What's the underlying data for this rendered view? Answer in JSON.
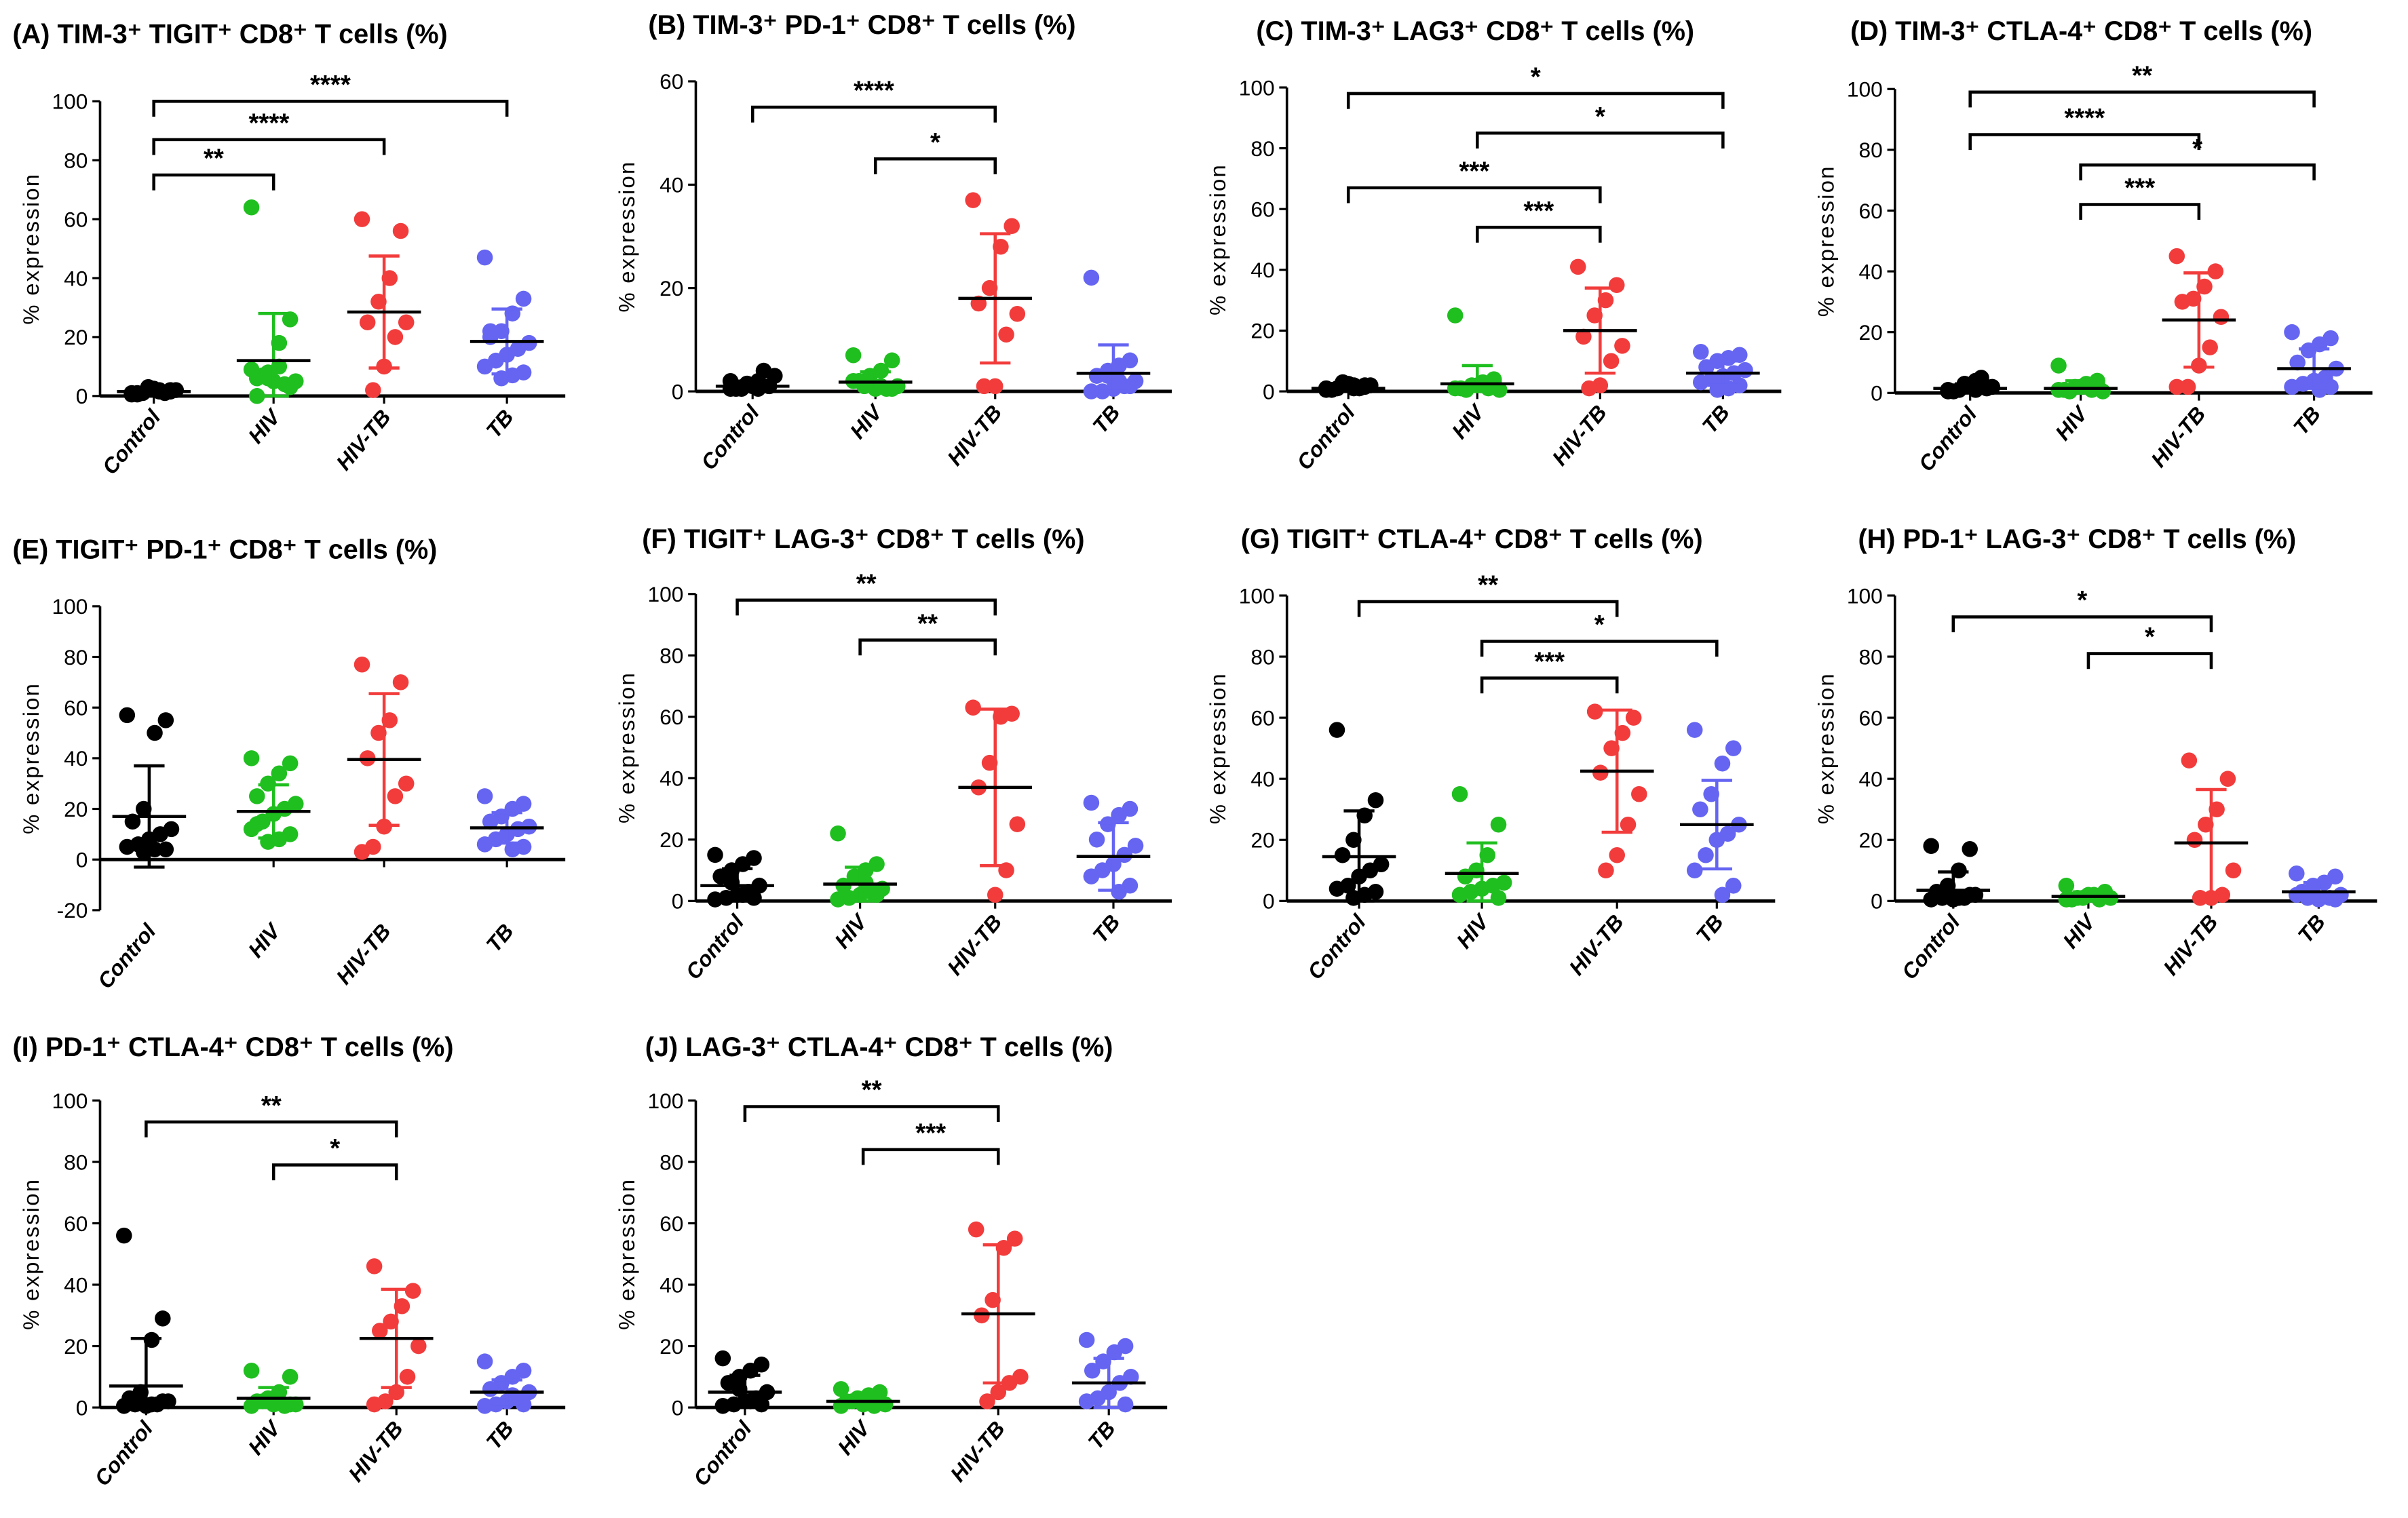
{
  "colors": {
    "Control": "#000000",
    "HIV": "#1fbf1f",
    "HIV-TB": "#f23c3c",
    "TB": "#6565f2"
  },
  "chart_data": [
    {
      "type": "scatter",
      "panel": "A",
      "title": "(A)  TIM-3⁺ TIGIT⁺ CD8⁺ T cells (%)",
      "ylabel": "% expression",
      "ylim": [
        0,
        100
      ],
      "yticks": [
        0,
        20,
        40,
        60,
        80,
        100
      ],
      "categories": [
        "Control",
        "HIV",
        "HIV-TB",
        "TB"
      ],
      "groups": [
        {
          "name": "Control",
          "mean": 1.5,
          "sd": 1,
          "points": [
            1,
            2,
            1.5,
            3,
            0.5,
            2,
            1,
            2.5,
            1,
            0.5,
            1.5,
            2,
            3,
            1
          ]
        },
        {
          "name": "HIV",
          "mean": 12,
          "sd": 16,
          "points": [
            64,
            26,
            18,
            8,
            6,
            5,
            4,
            5,
            7,
            9,
            3,
            10,
            6,
            0
          ]
        },
        {
          "name": "HIV-TB",
          "mean": 28.5,
          "sd": 19,
          "points": [
            60,
            56,
            40,
            32,
            25,
            25,
            20,
            10,
            2
          ]
        },
        {
          "name": "TB",
          "mean": 18.5,
          "sd": 11,
          "points": [
            47,
            33,
            28,
            22,
            20,
            18,
            16,
            14,
            12,
            10,
            8,
            7,
            6,
            22
          ]
        }
      ],
      "significance": [
        {
          "from": "Control",
          "to": "HIV",
          "y": 75,
          "label": "**"
        },
        {
          "from": "Control",
          "to": "HIV-TB",
          "y": 87,
          "label": "****"
        },
        {
          "from": "Control",
          "to": "TB",
          "y": 100,
          "label": "****"
        }
      ]
    },
    {
      "type": "scatter",
      "panel": "B",
      "title": "(B)  TIM-3⁺ PD-1⁺ CD8⁺ T cells (%)",
      "ylabel": "% expression",
      "ylim": [
        0,
        60
      ],
      "yticks": [
        0,
        20,
        40,
        60
      ],
      "categories": [
        "Control",
        "HIV",
        "HIV-TB",
        "TB"
      ],
      "groups": [
        {
          "name": "Control",
          "mean": 1,
          "sd": 1,
          "points": [
            0.5,
            1,
            2,
            1.5,
            0.5,
            3,
            4,
            1,
            0.5,
            2,
            1,
            0.5,
            1.5
          ]
        },
        {
          "name": "HIV",
          "mean": 1.8,
          "sd": 2,
          "points": [
            7,
            6,
            4,
            3,
            2,
            1,
            0.5,
            0.5,
            1,
            2,
            0.5,
            1
          ]
        },
        {
          "name": "HIV-TB",
          "mean": 18,
          "sd": 12.5,
          "points": [
            37,
            32,
            28,
            20,
            17,
            15,
            11,
            1,
            1
          ]
        },
        {
          "name": "TB",
          "mean": 3.5,
          "sd": 5.5,
          "points": [
            22,
            6,
            5,
            4,
            3,
            2,
            1,
            0.5,
            0,
            0,
            1,
            2,
            3
          ]
        }
      ],
      "significance": [
        {
          "from": "Control",
          "to": "HIV-TB",
          "y": 55,
          "label": "****"
        },
        {
          "from": "HIV",
          "to": "HIV-TB",
          "y": 45,
          "label": "*"
        }
      ]
    },
    {
      "type": "scatter",
      "panel": "C",
      "title": "(C)  TIM-3⁺ LAG3⁺ CD8⁺ T cells (%)",
      "ylabel": "% expression",
      "ylim": [
        0,
        100
      ],
      "yticks": [
        0,
        20,
        40,
        60,
        80,
        100
      ],
      "categories": [
        "Control",
        "HIV",
        "HIV-TB",
        "TB"
      ],
      "groups": [
        {
          "name": "Control",
          "mean": 1,
          "sd": 1,
          "points": [
            1,
            2,
            1,
            3,
            0.5,
            2,
            1,
            2.5,
            1,
            0.5,
            1.5,
            2,
            3
          ]
        },
        {
          "name": "HIV",
          "mean": 2.5,
          "sd": 6,
          "points": [
            25,
            4,
            3,
            2,
            1,
            0.5,
            1,
            2,
            0.5,
            1,
            3
          ]
        },
        {
          "name": "HIV-TB",
          "mean": 20,
          "sd": 14,
          "points": [
            41,
            35,
            30,
            25,
            18,
            15,
            10,
            2,
            1
          ]
        },
        {
          "name": "TB",
          "mean": 6,
          "sd": 4,
          "points": [
            13,
            12,
            11,
            10,
            8,
            7,
            6,
            5,
            4,
            3,
            2,
            1,
            0.5
          ]
        }
      ],
      "significance": [
        {
          "from": "Control",
          "to": "TB",
          "y": 98,
          "label": "*"
        },
        {
          "from": "HIV",
          "to": "TB",
          "y": 85,
          "label": "*"
        },
        {
          "from": "Control",
          "to": "HIV-TB",
          "y": 67,
          "label": "***"
        },
        {
          "from": "HIV",
          "to": "HIV-TB",
          "y": 54,
          "label": "***"
        }
      ]
    },
    {
      "type": "scatter",
      "panel": "D",
      "title": "(D)  TIM-3⁺ CTLA-4⁺ CD8⁺ T cells (%)",
      "ylabel": "% expression",
      "ylim": [
        0,
        100
      ],
      "yticks": [
        0,
        20,
        40,
        60,
        80,
        100
      ],
      "categories": [
        "Control",
        "HIV",
        "HIV-TB",
        "TB"
      ],
      "groups": [
        {
          "name": "Control",
          "mean": 1.5,
          "sd": 1.5,
          "points": [
            1,
            2,
            1,
            3,
            0.5,
            2,
            5,
            2.5,
            1,
            0.5,
            1.5,
            4,
            3
          ]
        },
        {
          "name": "HIV",
          "mean": 1.5,
          "sd": 2.5,
          "points": [
            9,
            4,
            3,
            2,
            1,
            0.5,
            1,
            2,
            0.5,
            1,
            3
          ]
        },
        {
          "name": "HIV-TB",
          "mean": 24,
          "sd": 15.5,
          "points": [
            45,
            40,
            35,
            31,
            30,
            25,
            15,
            9,
            2,
            2
          ]
        },
        {
          "name": "TB",
          "mean": 8,
          "sd": 6.5,
          "points": [
            20,
            18,
            16,
            14,
            10,
            8,
            5,
            4,
            3,
            2,
            2,
            1
          ]
        }
      ],
      "significance": [
        {
          "from": "Control",
          "to": "TB",
          "y": 99,
          "label": "**"
        },
        {
          "from": "Control",
          "to": "HIV-TB",
          "y": 85,
          "label": "****"
        },
        {
          "from": "HIV",
          "to": "TB",
          "y": 75,
          "label": "*"
        },
        {
          "from": "HIV",
          "to": "HIV-TB",
          "y": 62,
          "label": "***"
        }
      ]
    },
    {
      "type": "scatter",
      "panel": "E",
      "title": "(E)  TIGIT⁺ PD-1⁺ CD8⁺ T cells (%)",
      "ylabel": "% expression",
      "ylim": [
        -20,
        100
      ],
      "yticks": [
        -20,
        0,
        20,
        40,
        60,
        80,
        100
      ],
      "categories": [
        "Control",
        "HIV",
        "HIV-TB",
        "TB"
      ],
      "groups": [
        {
          "name": "Control",
          "mean": 17,
          "sd": 20,
          "points": [
            57,
            55,
            50,
            20,
            15,
            12,
            10,
            8,
            6,
            5,
            4,
            4,
            3
          ]
        },
        {
          "name": "HIV",
          "mean": 19,
          "sd": 10.5,
          "points": [
            40,
            38,
            34,
            30,
            25,
            22,
            20,
            18,
            15,
            12,
            10,
            8,
            7,
            14
          ]
        },
        {
          "name": "HIV-TB",
          "mean": 39.5,
          "sd": 26,
          "points": [
            77,
            70,
            55,
            50,
            40,
            30,
            25,
            13,
            5,
            3
          ]
        },
        {
          "name": "TB",
          "mean": 12.5,
          "sd": 6,
          "points": [
            25,
            22,
            20,
            17,
            15,
            13,
            12,
            10,
            8,
            6,
            5,
            4
          ]
        }
      ],
      "significance": []
    },
    {
      "type": "scatter",
      "panel": "F",
      "title": "(F)  TIGIT⁺ LAG-3⁺ CD8⁺ T cells (%)",
      "ylabel": "% expression",
      "ylim": [
        0,
        100
      ],
      "yticks": [
        0,
        20,
        40,
        60,
        80,
        100
      ],
      "categories": [
        "Control",
        "HIV",
        "HIV-TB",
        "TB"
      ],
      "groups": [
        {
          "name": "Control",
          "mean": 5,
          "sd": 5.5,
          "points": [
            15,
            14,
            12,
            10,
            8,
            5,
            3,
            2,
            1,
            0.5,
            1,
            2,
            6
          ]
        },
        {
          "name": "HIV",
          "mean": 5.5,
          "sd": 5.5,
          "points": [
            22,
            12,
            10,
            8,
            5,
            4,
            3,
            2,
            1,
            0.5,
            2,
            6
          ]
        },
        {
          "name": "HIV-TB",
          "mean": 37,
          "sd": 25.5,
          "points": [
            63,
            61,
            60,
            45,
            37,
            25,
            10,
            2
          ]
        },
        {
          "name": "TB",
          "mean": 14.5,
          "sd": 11,
          "points": [
            32,
            30,
            28,
            25,
            20,
            18,
            15,
            12,
            10,
            8,
            5,
            3
          ]
        }
      ],
      "significance": [
        {
          "from": "Control",
          "to": "HIV-TB",
          "y": 98,
          "label": "**"
        },
        {
          "from": "HIV",
          "to": "HIV-TB",
          "y": 85,
          "label": "**"
        }
      ]
    },
    {
      "type": "scatter",
      "panel": "G",
      "title": "(G)  TIGIT⁺ CTLA-4⁺ CD8⁺ T cells (%)",
      "ylabel": "% expression",
      "ylim": [
        0,
        100
      ],
      "yticks": [
        0,
        20,
        40,
        60,
        80,
        100
      ],
      "categories": [
        "Control",
        "HIV",
        "HIV-TB",
        "TB"
      ],
      "groups": [
        {
          "name": "Control",
          "mean": 14.5,
          "sd": 15,
          "points": [
            56,
            33,
            28,
            20,
            15,
            12,
            10,
            8,
            5,
            4,
            3,
            2,
            1
          ]
        },
        {
          "name": "HIV",
          "mean": 9,
          "sd": 10,
          "points": [
            35,
            25,
            15,
            10,
            8,
            6,
            5,
            4,
            3,
            2,
            1
          ]
        },
        {
          "name": "HIV-TB",
          "mean": 42.5,
          "sd": 20,
          "points": [
            62,
            60,
            55,
            50,
            42,
            35,
            25,
            15,
            10
          ]
        },
        {
          "name": "TB",
          "mean": 25,
          "sd": 14.5,
          "points": [
            56,
            50,
            45,
            35,
            30,
            25,
            22,
            20,
            15,
            10,
            5,
            2
          ]
        }
      ],
      "significance": [
        {
          "from": "Control",
          "to": "HIV-TB",
          "y": 98,
          "label": "**"
        },
        {
          "from": "HIV",
          "to": "TB",
          "y": 85,
          "label": "*"
        },
        {
          "from": "HIV",
          "to": "HIV-TB",
          "y": 73,
          "label": "***"
        }
      ]
    },
    {
      "type": "scatter",
      "panel": "H",
      "title": "(H)  PD-1⁺ LAG-3⁺ CD8⁺ T cells (%)",
      "ylabel": "% expression",
      "ylim": [
        0,
        100
      ],
      "yticks": [
        0,
        20,
        40,
        60,
        80,
        100
      ],
      "categories": [
        "Control",
        "HIV",
        "HIV-TB",
        "TB"
      ],
      "groups": [
        {
          "name": "Control",
          "mean": 3.5,
          "sd": 6,
          "points": [
            18,
            17,
            10,
            5,
            3,
            2,
            1,
            0.5,
            1,
            0.5,
            2,
            1
          ]
        },
        {
          "name": "HIV",
          "mean": 1.5,
          "sd": 1.5,
          "points": [
            5,
            3,
            2,
            1,
            0.5,
            1,
            0.5,
            2,
            1,
            0.5
          ]
        },
        {
          "name": "HIV-TB",
          "mean": 19,
          "sd": 17.5,
          "points": [
            46,
            40,
            30,
            25,
            20,
            10,
            2,
            1,
            1
          ]
        },
        {
          "name": "TB",
          "mean": 3,
          "sd": 3,
          "points": [
            9,
            8,
            6,
            5,
            3,
            2,
            1,
            0.5,
            1,
            2,
            0.5
          ]
        }
      ],
      "significance": [
        {
          "from": "Control",
          "to": "HIV-TB",
          "y": 93,
          "label": "*"
        },
        {
          "from": "HIV",
          "to": "HIV-TB",
          "y": 81,
          "label": "*"
        }
      ]
    },
    {
      "type": "scatter",
      "panel": "I",
      "title": "(I)  PD-1⁺ CTLA-4⁺ CD8⁺ T cells (%)",
      "ylabel": "% expression",
      "ylim": [
        0,
        100
      ],
      "yticks": [
        0,
        20,
        40,
        60,
        80,
        100
      ],
      "categories": [
        "Control",
        "HIV",
        "HIV-TB",
        "TB"
      ],
      "groups": [
        {
          "name": "Control",
          "mean": 7,
          "sd": 15.5,
          "points": [
            56,
            29,
            22,
            5,
            3,
            2,
            1,
            0.5,
            1,
            0.5,
            2,
            1
          ]
        },
        {
          "name": "HIV",
          "mean": 3,
          "sd": 3.5,
          "points": [
            12,
            10,
            5,
            3,
            2,
            1,
            0.5,
            1,
            2,
            0.5,
            1
          ]
        },
        {
          "name": "HIV-TB",
          "mean": 22.5,
          "sd": 16,
          "points": [
            46,
            38,
            33,
            28,
            25,
            20,
            10,
            5,
            2,
            1
          ]
        },
        {
          "name": "TB",
          "mean": 5,
          "sd": 4,
          "points": [
            15,
            12,
            10,
            8,
            6,
            5,
            3,
            2,
            1,
            0.5,
            1,
            4
          ]
        }
      ],
      "significance": [
        {
          "from": "Control",
          "to": "HIV-TB",
          "y": 93,
          "label": "**"
        },
        {
          "from": "HIV",
          "to": "HIV-TB",
          "y": 79,
          "label": "*"
        }
      ]
    },
    {
      "type": "scatter",
      "panel": "J",
      "title": "(J)  LAG-3⁺ CTLA-4⁺ CD8⁺ T cells (%)",
      "ylabel": "% expression",
      "ylim": [
        0,
        100
      ],
      "yticks": [
        0,
        20,
        40,
        60,
        80,
        100
      ],
      "categories": [
        "Control",
        "HIV",
        "HIV-TB",
        "TB"
      ],
      "groups": [
        {
          "name": "Control",
          "mean": 5,
          "sd": 5.5,
          "points": [
            16,
            14,
            12,
            10,
            8,
            5,
            3,
            2,
            1,
            0.5,
            1,
            2,
            6
          ]
        },
        {
          "name": "HIV",
          "mean": 2,
          "sd": 1.5,
          "points": [
            6,
            5,
            4,
            3,
            2,
            1,
            0.5,
            1,
            2,
            0.5
          ]
        },
        {
          "name": "HIV-TB",
          "mean": 30.5,
          "sd": 22.5,
          "points": [
            58,
            55,
            52,
            35,
            30,
            10,
            8,
            5,
            2
          ]
        },
        {
          "name": "TB",
          "mean": 8,
          "sd": 8,
          "points": [
            22,
            20,
            18,
            15,
            12,
            10,
            8,
            5,
            3,
            2,
            1
          ]
        }
      ],
      "significance": [
        {
          "from": "Control",
          "to": "HIV-TB",
          "y": 98,
          "label": "**"
        },
        {
          "from": "HIV",
          "to": "HIV-TB",
          "y": 84,
          "label": "***"
        }
      ]
    }
  ]
}
